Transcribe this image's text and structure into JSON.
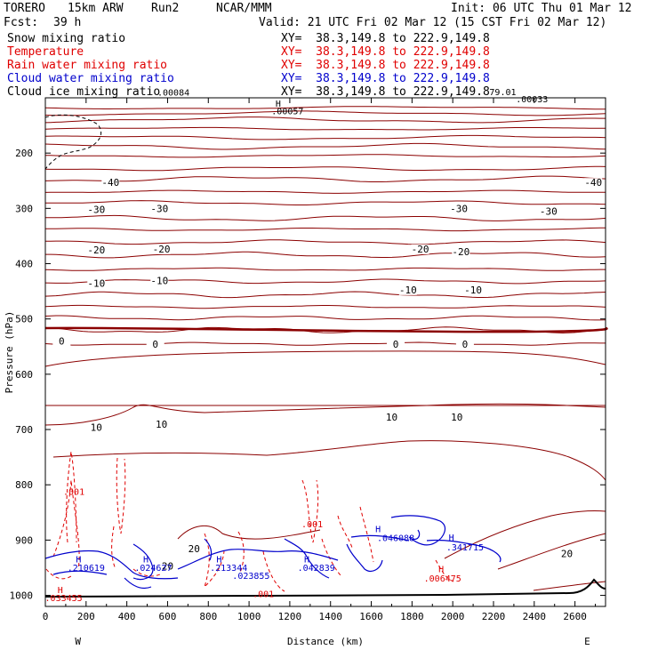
{
  "header": {
    "model": "TORERO",
    "resolution": "15km ARW",
    "run": "Run2",
    "source": "NCAR/MMM",
    "init": "Init: 06 UTC Thu 01 Mar 12",
    "fcst_label": "Fcst:",
    "fcst_value": "39 h",
    "valid": "Valid: 21 UTC Fri 02 Mar 12 (15 CST Fri 02 Mar 12)"
  },
  "fields": [
    {
      "name": "Snow mixing ratio",
      "xy": "XY=  38.3,149.8 to 222.9,149.8",
      "color": "#000000"
    },
    {
      "name": "Temperature",
      "xy": "XY=  38.3,149.8 to 222.9,149.8",
      "color": "#8b0000"
    },
    {
      "name": "Rain water mixing ratio",
      "xy": "XY=  38.3,149.8 to 222.9,149.8",
      "color": "#e00000"
    },
    {
      "name": "Cloud water mixing ratio",
      "xy": "XY=  38.3,149.8 to 222.9,149.8",
      "color": "#0000cc"
    },
    {
      "name": "Cloud ice mixing ratio",
      "xy": "XY=  38.3,149.8 to 222.9,149.8",
      "color": "#000000"
    }
  ],
  "chart_data": {
    "type": "contour-cross-section",
    "xlabel": "Distance (km)",
    "ylabel": "Pressure (hPa)",
    "xlim": [
      0,
      2750
    ],
    "ylim": [
      1020,
      100
    ],
    "x_ticks": [
      0,
      200,
      400,
      600,
      800,
      1000,
      1200,
      1400,
      1600,
      1800,
      2000,
      2200,
      2400,
      2600
    ],
    "y_ticks": [
      200,
      300,
      400,
      500,
      600,
      700,
      800,
      900,
      1000
    ],
    "left_end": "W",
    "right_end": "E",
    "temperature_contours": [
      {
        "label": "-40",
        "positions": [
          {
            "x": 320,
            "p": 258
          },
          {
            "x": 2690,
            "p": 258
          }
        ]
      },
      {
        "label": "-30",
        "positions": [
          {
            "x": 250,
            "p": 307
          },
          {
            "x": 560,
            "p": 305
          },
          {
            "x": 2030,
            "p": 305
          },
          {
            "x": 2470,
            "p": 310
          }
        ]
      },
      {
        "label": "-20",
        "positions": [
          {
            "x": 250,
            "p": 380
          },
          {
            "x": 570,
            "p": 378
          },
          {
            "x": 1840,
            "p": 378
          },
          {
            "x": 2040,
            "p": 383
          }
        ]
      },
      {
        "label": "-10",
        "positions": [
          {
            "x": 250,
            "p": 440
          },
          {
            "x": 560,
            "p": 435
          },
          {
            "x": 1780,
            "p": 452
          },
          {
            "x": 2100,
            "p": 452
          }
        ]
      },
      {
        "label": "0",
        "positions": [
          {
            "x": 80,
            "p": 545
          },
          {
            "x": 540,
            "p": 550
          },
          {
            "x": 1720,
            "p": 550
          },
          {
            "x": 2060,
            "p": 550
          }
        ]
      },
      {
        "label": "10",
        "positions": [
          {
            "x": 250,
            "p": 701
          },
          {
            "x": 570,
            "p": 695
          },
          {
            "x": 1700,
            "p": 682
          },
          {
            "x": 2020,
            "p": 682
          }
        ]
      },
      {
        "label": "20",
        "positions": [
          {
            "x": 730,
            "p": 920
          },
          {
            "x": 600,
            "p": 952
          },
          {
            "x": 2560,
            "p": 929
          }
        ]
      }
    ],
    "contour_labels_static": {
      "top_left": ".00084",
      "top_right_a": "79.01",
      "top_right_b": ".00033",
      "snow_peak_label": ".00057",
      "snow_peak_marker": "H"
    },
    "rain_water": {
      "labels": [
        {
          "text": ".001",
          "x": 140,
          "p": 818
        },
        {
          "text": ".001",
          "x": 1310,
          "p": 877
        },
        {
          "text": ".001",
          "x": 1070,
          "p": 1003
        },
        {
          "text": ".006475",
          "x": 1950,
          "p": 975
        },
        {
          "text": ".033455",
          "x": 90,
          "p": 1010
        }
      ]
    },
    "cloud_water": {
      "labels": [
        {
          "text": ".210619",
          "x": 200,
          "p": 956
        },
        {
          "text": ".024627",
          "x": 530,
          "p": 956
        },
        {
          "text": ".213344",
          "x": 900,
          "p": 956
        },
        {
          "text": ".023855",
          "x": 1010,
          "p": 970
        },
        {
          "text": ".042839",
          "x": 1330,
          "p": 956
        },
        {
          "text": ".046088",
          "x": 1720,
          "p": 902
        },
        {
          "text": ".341715",
          "x": 2060,
          "p": 919
        }
      ],
      "markers": [
        "H",
        "H",
        "H",
        "H",
        "H",
        "H"
      ]
    }
  }
}
